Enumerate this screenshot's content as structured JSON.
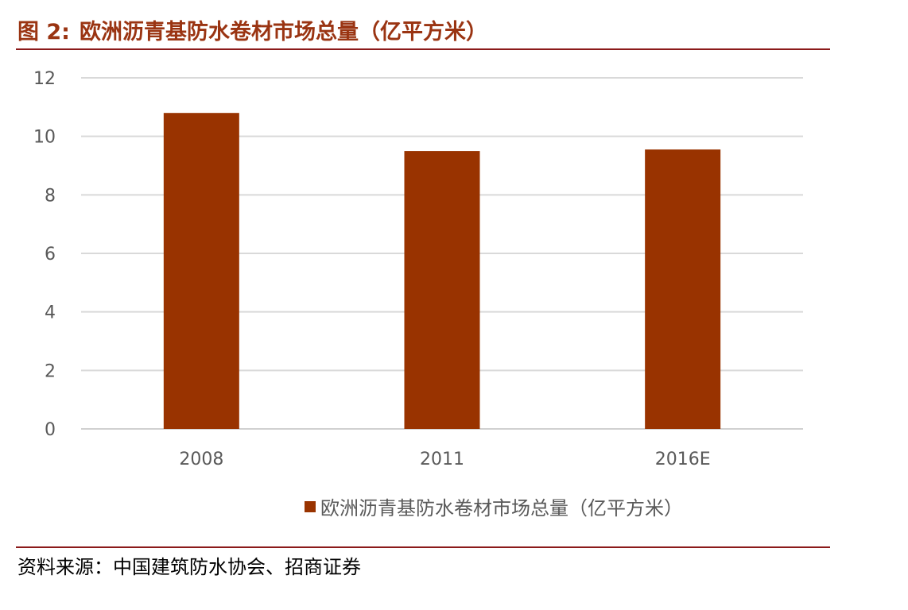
{
  "figure": {
    "label": "图 2:",
    "title": "欧洲沥青基防水卷材市场总量（亿平方米）",
    "source": "资料来源：中国建筑防水协会、招商证券"
  },
  "chart_data": {
    "type": "bar",
    "categories": [
      "2008",
      "2011",
      "2016E"
    ],
    "series": [
      {
        "name": "欧洲沥青基防水卷材市场总量（亿平方米）",
        "values": [
          10.8,
          9.5,
          9.55
        ],
        "color": "#993300"
      }
    ],
    "ylim": [
      0,
      12
    ],
    "yticks": [
      0,
      2,
      4,
      6,
      8,
      10,
      12
    ],
    "grid": true,
    "legend_position": "bottom",
    "xlabel": "",
    "ylabel": ""
  }
}
